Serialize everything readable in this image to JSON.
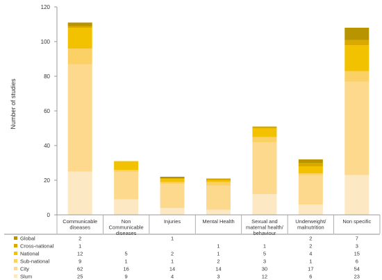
{
  "chart_data": {
    "type": "bar",
    "stacked": true,
    "ylabel": "Number of studies",
    "ylim": [
      0,
      120
    ],
    "yticks": [
      0,
      20,
      40,
      60,
      80,
      100,
      120
    ],
    "grid": false,
    "legend": "table-below",
    "categories": [
      [
        "Communicable",
        "diseases"
      ],
      [
        "Non",
        "Communicable",
        "diseases"
      ],
      [
        "Injuries"
      ],
      [
        "Mental Health"
      ],
      [
        "Sexual and",
        "maternal health/",
        "behaviour"
      ],
      [
        "Underweight/",
        "malnutrition"
      ],
      [
        "Non specific"
      ]
    ],
    "series": [
      {
        "name": "Slum",
        "color": "#fce9c4",
        "values": [
          25,
          9,
          4,
          3,
          12,
          6,
          23
        ],
        "labels": [
          "25",
          "9",
          "4",
          "3",
          "12",
          "6",
          "23"
        ]
      },
      {
        "name": "City",
        "color": "#fcd98d",
        "values": [
          62,
          16,
          14,
          14,
          30,
          17,
          54
        ],
        "labels": [
          "62",
          "16",
          "14",
          "14",
          "30",
          "17",
          "54"
        ]
      },
      {
        "name": "Sub-national",
        "color": "#fbd064",
        "values": [
          9,
          1,
          1,
          2,
          3,
          1,
          6
        ],
        "labels": [
          "9",
          "1",
          "1",
          "2",
          "3",
          "1",
          "6"
        ]
      },
      {
        "name": "National",
        "color": "#f2c200",
        "values": [
          12,
          5,
          2,
          1,
          5,
          4,
          15
        ],
        "labels": [
          "12",
          "5",
          "2",
          "1",
          "5",
          "4",
          "15"
        ]
      },
      {
        "name": "Cross-national",
        "color": "#d9a900",
        "values": [
          1,
          0,
          0,
          1,
          1,
          2,
          3
        ],
        "labels": [
          "1",
          "",
          "",
          "1",
          "1",
          "2",
          "3"
        ]
      },
      {
        "name": "Global",
        "color": "#b89500",
        "values": [
          2,
          0,
          1,
          0,
          0,
          2,
          7
        ],
        "labels": [
          "2",
          "",
          "1",
          "",
          "",
          "2",
          "7"
        ]
      }
    ],
    "table_order": [
      "Global",
      "Cross-national",
      "National",
      "Sub-national",
      "City",
      "Slum"
    ]
  }
}
